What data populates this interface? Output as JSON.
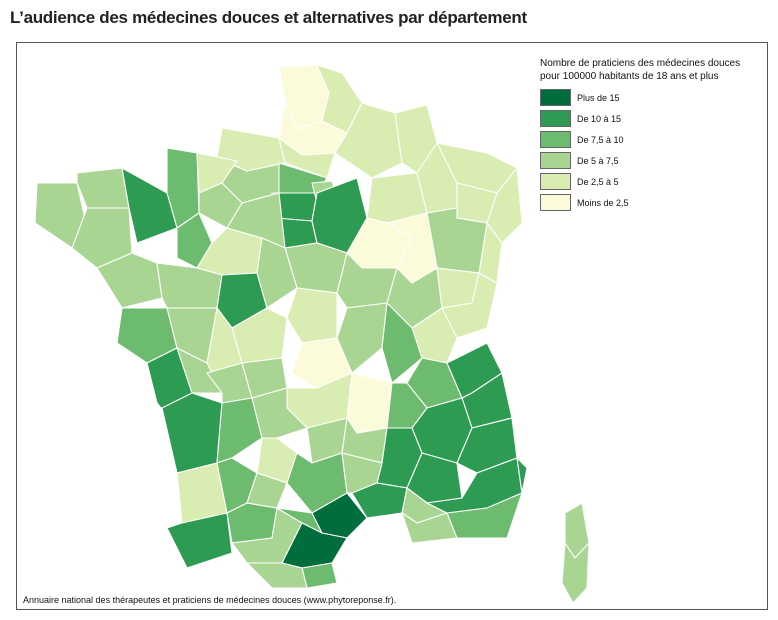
{
  "title": "L’audience des médecines douces et alternatives par département",
  "source": "Annuaire national des thérapeutes et praticiens de médecines douces (www.phytoreponse.fr).",
  "legend": {
    "title_line1": "Nombre de praticiens des médecines douces",
    "title_line2": "pour 100000 habitants de 18 ans et plus",
    "items": [
      {
        "label": "Plus de 15",
        "color": "#006d3c"
      },
      {
        "label": "De 10 à 15",
        "color": "#2e9b52"
      },
      {
        "label": "De 7,5 à 10",
        "color": "#6dbb6e"
      },
      {
        "label": "De 5 à 7,5",
        "color": "#a8d692"
      },
      {
        "label": "De 2,5 à 5",
        "color": "#d9edb2"
      },
      {
        "label": "Moins de 2,5",
        "color": "#fbfbd9"
      }
    ]
  }
}
